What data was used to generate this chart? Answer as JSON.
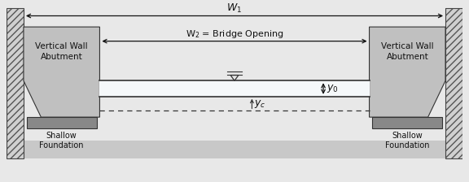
{
  "bg_color": "#e8e8e8",
  "wall_color": "#c0c0c0",
  "wall_dark": "#888888",
  "foundation_color": "#888888",
  "water_color": "#dce8f0",
  "hatch_bg": "#d0d0d0",
  "text_color": "#111111",
  "W1_label": "W$_1$",
  "W2_label": "W$_2$ = Bridge Opening",
  "y0_label": "y$_0$",
  "yc_label": "y$_c$",
  "left_label": "Vertical Wall\nAbutment",
  "right_label": "Vertical Wall\nAbutment",
  "sf_label": "Shallow\nFoundation",
  "figsize": [
    5.76,
    2.24
  ],
  "dpi": 100,
  "lw": 0.8
}
